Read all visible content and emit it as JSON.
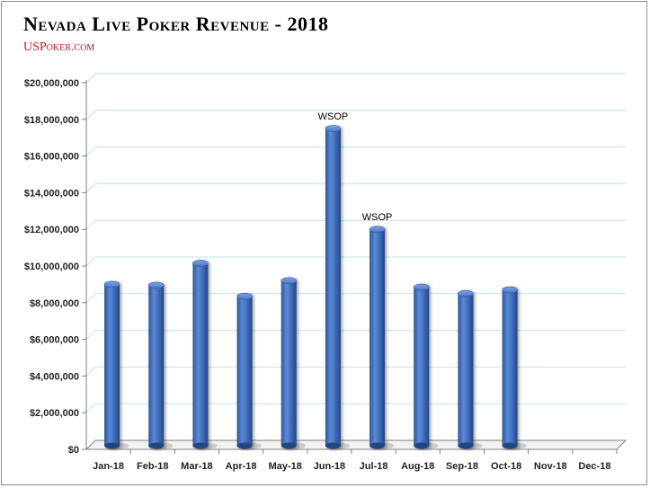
{
  "header": {
    "title": "Nevada Live Poker Revenue - 2018",
    "source": "USPoker.com"
  },
  "chart_data": {
    "type": "bar",
    "title": "Nevada Live Poker Revenue - 2018",
    "xlabel": "",
    "ylabel": "",
    "categories": [
      "Jan-18",
      "Feb-18",
      "Mar-18",
      "Apr-18",
      "May-18",
      "Jun-18",
      "Jul-18",
      "Aug-18",
      "Sep-18",
      "Oct-18",
      "Nov-18",
      "Dec-18"
    ],
    "values": [
      9000000,
      8950000,
      10150000,
      8350000,
      9200000,
      17500000,
      12000000,
      8850000,
      8500000,
      8700000,
      null,
      null
    ],
    "yticks": [
      "$0",
      "$2,000,000",
      "$4,000,000",
      "$6,000,000",
      "$8,000,000",
      "$10,000,000",
      "$12,000,000",
      "$14,000,000",
      "$16,000,000",
      "$18,000,000",
      "$20,000,000"
    ],
    "ylim": [
      0,
      20000000
    ],
    "grid": true,
    "legend": "none",
    "annotations": [
      {
        "category": "Jun-18",
        "text": "WSOP"
      },
      {
        "category": "Jul-18",
        "text": "WSOP"
      }
    ],
    "colors": {
      "bar": "#4472c4",
      "grid": "#bfe4ea",
      "axis": "#7f7f7f",
      "floor": "#bfbfbf"
    }
  }
}
